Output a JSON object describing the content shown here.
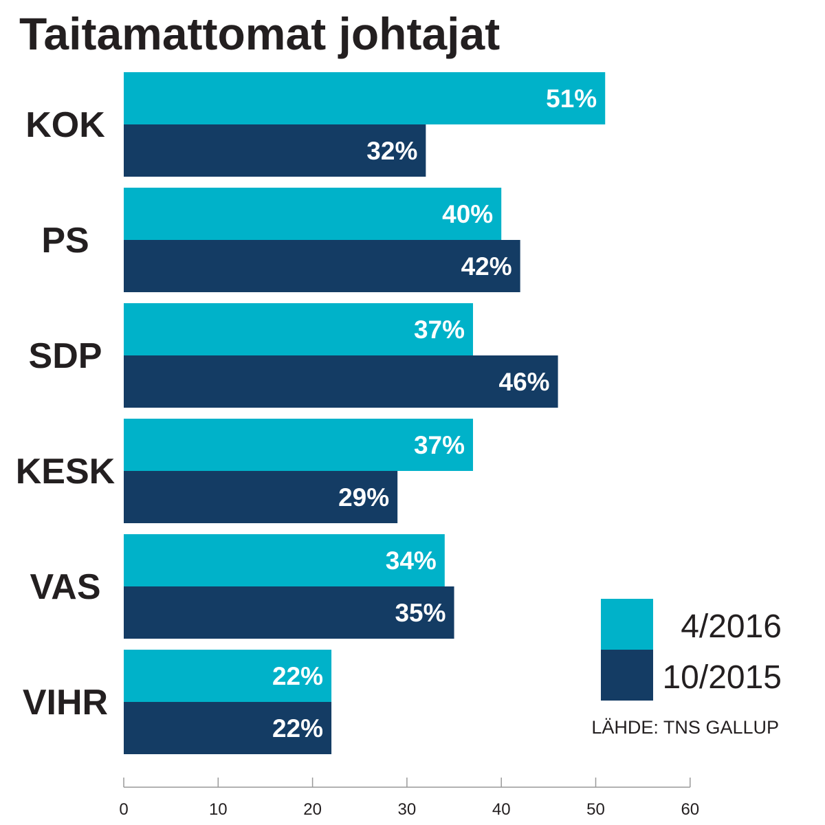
{
  "chart_data": {
    "type": "bar",
    "orientation": "horizontal",
    "title": "Taitamattomat johtajat",
    "categories": [
      "KOK",
      "PS",
      "SDP",
      "KESK",
      "VAS",
      "VIHR"
    ],
    "series": [
      {
        "name": "4/2016",
        "color": "#00b2c9",
        "values": [
          51,
          40,
          37,
          37,
          34,
          22
        ],
        "labels": [
          "51%",
          "40%",
          "37%",
          "37%",
          "34%",
          "22%"
        ]
      },
      {
        "name": "10/2015",
        "color": "#143c64",
        "values": [
          32,
          42,
          46,
          29,
          35,
          22
        ],
        "labels": [
          "32%",
          "42%",
          "46%",
          "29%",
          "35%",
          "22%"
        ]
      }
    ],
    "xlim": [
      0,
      60
    ],
    "xticks": [
      0,
      10,
      20,
      30,
      40,
      50,
      60
    ],
    "xtick_labels": [
      "0",
      "10",
      "20",
      "30",
      "40",
      "50",
      "60"
    ],
    "grid": false,
    "legend_position": "bottom-right",
    "source": "LÄHDE: TNS GALLUP"
  }
}
